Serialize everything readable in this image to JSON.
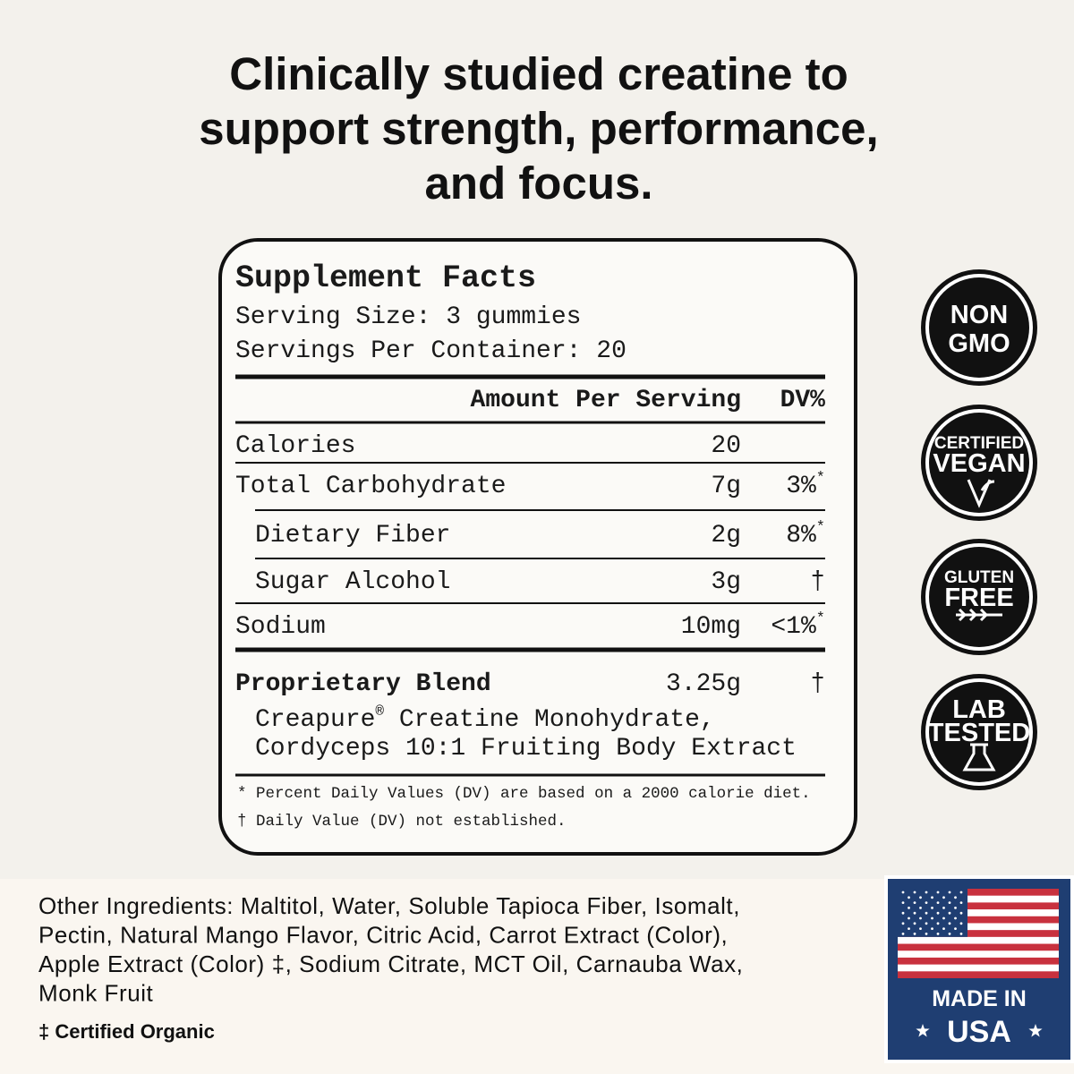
{
  "headline": [
    "Clinically studied creatine to",
    "support strength, performance,",
    "and focus."
  ],
  "facts": {
    "title": "Supplement Facts",
    "serving_size": "Serving Size: 3 gummies",
    "servings_per_container": "Servings Per Container: 20",
    "header": {
      "amount": "Amount Per Serving",
      "dv": "DV%"
    },
    "rows": [
      {
        "name": "Calories",
        "amount": "20"
      },
      {
        "name": "Total Carbohydrate",
        "amount": "7g",
        "dv": "3%",
        "dv_note": "*",
        "subrows": [
          {
            "name": "Dietary Fiber",
            "amount": "2g",
            "dv": "8%",
            "dv_note": "*"
          },
          {
            "name": "Sugar Alcohol",
            "amount": "3g",
            "dv": "†"
          }
        ]
      },
      {
        "name": "Sodium",
        "amount": "10mg",
        "dv": "<1%",
        "dv_note": "*"
      }
    ],
    "blend": {
      "name": "Proprietary Blend",
      "amount": "3.25g",
      "dv": "†",
      "ingredients": [
        {
          "brand": "Creapure",
          "mark": "®",
          "rest": " Creatine Monohydrate,"
        },
        {
          "brand": "Cordyceps 10:1 Fruiting Body Extract"
        }
      ]
    },
    "footnotes": [
      "* Percent Daily Values (DV) are based on a 2000 calorie diet.",
      "† Daily Value (DV) not established."
    ]
  },
  "badges": [
    [
      "NON",
      "GMO"
    ],
    [
      "CERTIFIED",
      "VEGAN"
    ],
    [
      "GLUTEN",
      "FREE"
    ],
    [
      "LAB",
      "TESTED"
    ]
  ],
  "other_ingredients": [
    "Other Ingredients: Maltitol, Water, Soluble Tapioca Fiber, Isomalt,",
    "Pectin, Natural Mango Flavor, Citric Acid, Carrot Extract (Color),",
    "Apple Extract (Color) ‡, Sodium Citrate, MCT Oil, Carnauba Wax,",
    "Monk Fruit"
  ],
  "organic_note": "‡ Certified Organic",
  "origin": {
    "line1": "MADE IN",
    "line2": "USA"
  }
}
